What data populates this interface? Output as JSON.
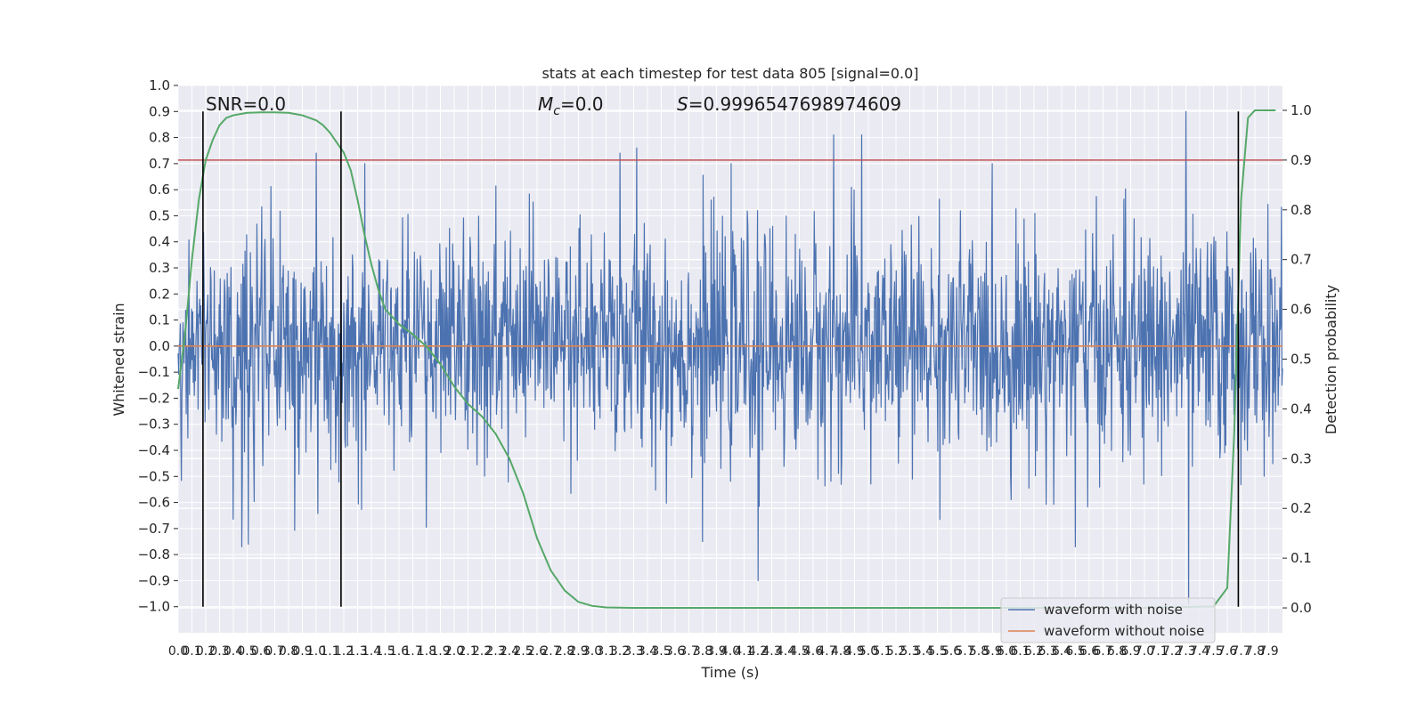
{
  "chart_data": {
    "type": "line",
    "title": "stats at each timestep for test data 805 [signal=0.0]",
    "xlabel": "Time (s)",
    "ylabel": "Whitened strain",
    "y2label": "Detection probability",
    "xlim": [
      0.0,
      8.0
    ],
    "ylim": [
      -1.1,
      1.0
    ],
    "y2lim": [
      -0.05,
      1.05
    ],
    "x_ticks": [
      "0.0",
      "0.1",
      "0.2",
      "0.3",
      "0.4",
      "0.5",
      "0.6",
      "0.7",
      "0.8",
      "0.9",
      "1.0",
      "1.1",
      "1.2",
      "1.3",
      "1.4",
      "1.5",
      "1.6",
      "1.7",
      "1.8",
      "1.9",
      "2.0",
      "2.1",
      "2.2",
      "2.3",
      "2.4",
      "2.5",
      "2.6",
      "2.7",
      "2.8",
      "2.9",
      "3.0",
      "3.1",
      "3.2",
      "3.3",
      "3.4",
      "3.5",
      "3.6",
      "3.7",
      "3.8",
      "3.9",
      "4.0",
      "4.1",
      "4.2",
      "4.3",
      "4.4",
      "4.5",
      "4.6",
      "4.7",
      "4.8",
      "4.9",
      "5.0",
      "5.1",
      "5.2",
      "5.3",
      "5.4",
      "5.5",
      "5.6",
      "5.7",
      "5.8",
      "5.9",
      "6.0",
      "6.1",
      "6.2",
      "6.3",
      "6.4",
      "6.5",
      "6.6",
      "6.7",
      "6.8",
      "6.9",
      "7.0",
      "7.1",
      "7.2",
      "7.3",
      "7.4",
      "7.5",
      "7.6",
      "7.7",
      "7.8",
      "7.9"
    ],
    "y_ticks": [
      "1.0",
      "0.9",
      "0.8",
      "0.7",
      "0.6",
      "0.5",
      "0.4",
      "0.3",
      "0.2",
      "0.1",
      "0.0",
      "−0.1",
      "−0.2",
      "−0.3",
      "−0.4",
      "−0.5",
      "−0.6",
      "−0.7",
      "−0.8",
      "−0.9",
      "−1.0"
    ],
    "y2_ticks": [
      "1.0",
      "0.9",
      "0.8",
      "0.7",
      "0.6",
      "0.5",
      "0.4",
      "0.3",
      "0.2",
      "0.1",
      "0.0"
    ],
    "annotations": {
      "snr": "SNR=0.0",
      "mc_symbol": "M",
      "mc_sub": "c",
      "mc_value": "=0.0",
      "s_symbol": "S",
      "s_value": "=0.9996547698974609"
    },
    "legend": {
      "placement": "lower-right",
      "entries": [
        "waveform with noise",
        "waveform without noise"
      ]
    },
    "grid": true,
    "threshold": {
      "axis": "y2",
      "value": 0.9,
      "color": "#c44e52"
    },
    "vertical_lines": [
      0.18,
      1.18,
      7.68
    ],
    "series": [
      {
        "name": "waveform with noise",
        "axis": "y",
        "color": "#4c72b0",
        "style": "noise",
        "x_range": [
          0.0,
          8.0
        ],
        "n_samples": 2048,
        "approx_std": 0.22,
        "peaks": [
          {
            "x": 1.0,
            "y": 0.74
          },
          {
            "x": 3.2,
            "y": 0.74
          },
          {
            "x": 3.32,
            "y": 0.76
          },
          {
            "x": 4.75,
            "y": 0.81
          },
          {
            "x": 4.95,
            "y": 0.81
          },
          {
            "x": 7.3,
            "y": 0.9
          },
          {
            "x": 4.2,
            "y": -0.9
          },
          {
            "x": 0.46,
            "y": -0.77
          },
          {
            "x": 0.51,
            "y": -0.76
          },
          {
            "x": 7.32,
            "y": -0.99
          },
          {
            "x": 6.5,
            "y": -0.77
          },
          {
            "x": 3.8,
            "y": -0.75
          }
        ]
      },
      {
        "name": "waveform without noise",
        "axis": "y",
        "color": "#dd8452",
        "style": "flat",
        "x": [
          0.0,
          8.0
        ],
        "values": [
          0.0,
          0.0
        ]
      },
      {
        "name": "detection probability",
        "axis": "y2",
        "color": "#55a868",
        "style": "line",
        "x": [
          0.0,
          0.05,
          0.1,
          0.15,
          0.2,
          0.25,
          0.3,
          0.35,
          0.4,
          0.5,
          0.6,
          0.7,
          0.8,
          0.9,
          1.0,
          1.05,
          1.1,
          1.15,
          1.2,
          1.25,
          1.3,
          1.35,
          1.4,
          1.45,
          1.5,
          1.6,
          1.7,
          1.8,
          1.9,
          2.0,
          2.1,
          2.2,
          2.3,
          2.4,
          2.5,
          2.6,
          2.7,
          2.8,
          2.9,
          3.0,
          3.1,
          3.3,
          3.5,
          4.0,
          5.0,
          6.0,
          7.0,
          7.5,
          7.6,
          7.65,
          7.7,
          7.75,
          7.8,
          7.85,
          7.9,
          7.95
        ],
        "values": [
          0.44,
          0.55,
          0.7,
          0.82,
          0.9,
          0.94,
          0.97,
          0.985,
          0.99,
          0.995,
          0.996,
          0.996,
          0.995,
          0.99,
          0.98,
          0.97,
          0.955,
          0.935,
          0.915,
          0.88,
          0.82,
          0.75,
          0.69,
          0.64,
          0.6,
          0.57,
          0.55,
          0.525,
          0.49,
          0.445,
          0.41,
          0.385,
          0.35,
          0.3,
          0.23,
          0.14,
          0.075,
          0.035,
          0.012,
          0.004,
          0.001,
          0.0,
          0.0,
          0.0,
          0.0,
          0.0,
          0.0,
          0.003,
          0.04,
          0.35,
          0.82,
          0.985,
          1.0,
          1.0,
          1.0,
          1.0
        ]
      }
    ]
  }
}
